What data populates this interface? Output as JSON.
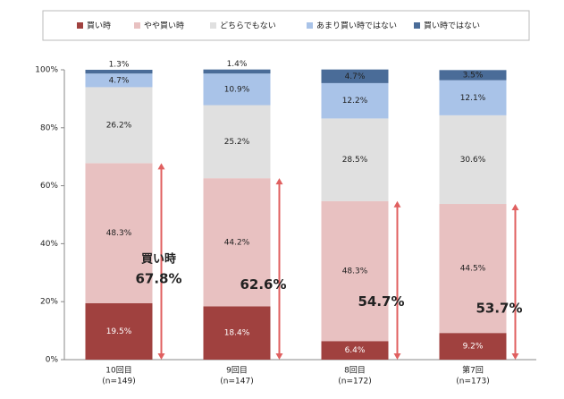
{
  "chart_data": {
    "type": "stacked_bar",
    "categories": [
      "10回目",
      "9回目",
      "8回目",
      "第7回"
    ],
    "sample_sizes": [
      "(n=149)",
      "(n=147)",
      "(n=172)",
      "(n=173)"
    ],
    "series": [
      {
        "name": "買い時",
        "color": "#a0413f",
        "values": [
          19.5,
          18.4,
          6.4,
          9.2
        ],
        "value_labels": [
          "19.5%",
          "18.4%",
          "6.4%",
          "9.2%"
        ]
      },
      {
        "name": "やや買い時",
        "color": "#e8c1c1",
        "values": [
          48.3,
          44.2,
          48.3,
          44.5
        ],
        "value_labels": [
          "48.3%",
          "44.2%",
          "48.3%",
          "44.5%"
        ]
      },
      {
        "name": "どちらでもない",
        "color": "#e0e0e0",
        "values": [
          26.2,
          25.2,
          28.5,
          30.6
        ],
        "value_labels": [
          "26.2%",
          "25.2%",
          "28.5%",
          "30.6%"
        ]
      },
      {
        "name": "あまり買い時ではない",
        "color": "#a9c3e8",
        "values": [
          4.7,
          10.9,
          12.2,
          12.1
        ],
        "value_labels": [
          "4.7%",
          "10.9%",
          "12.2%",
          "12.1%"
        ]
      },
      {
        "name": "買い時ではない",
        "color": "#4a6c98",
        "values": [
          1.3,
          1.4,
          4.7,
          3.5
        ],
        "value_labels": [
          "1.3%",
          "1.4%",
          "4.7%",
          "3.5%"
        ]
      }
    ],
    "annotations": {
      "title": "買い時",
      "values": [
        67.8,
        62.6,
        54.7,
        53.7
      ],
      "value_labels": [
        "67.8%",
        "62.6%",
        "54.7%",
        "53.7%"
      ],
      "color": "#e06060"
    },
    "ylim": [
      0,
      100
    ],
    "yticks": [
      {
        "value": 0,
        "label": "0%"
      },
      {
        "value": 20,
        "label": "20%"
      },
      {
        "value": 40,
        "label": "40%"
      },
      {
        "value": 60,
        "label": "60%"
      },
      {
        "value": 80,
        "label": "80%"
      },
      {
        "value": 100,
        "label": "100%"
      }
    ]
  }
}
